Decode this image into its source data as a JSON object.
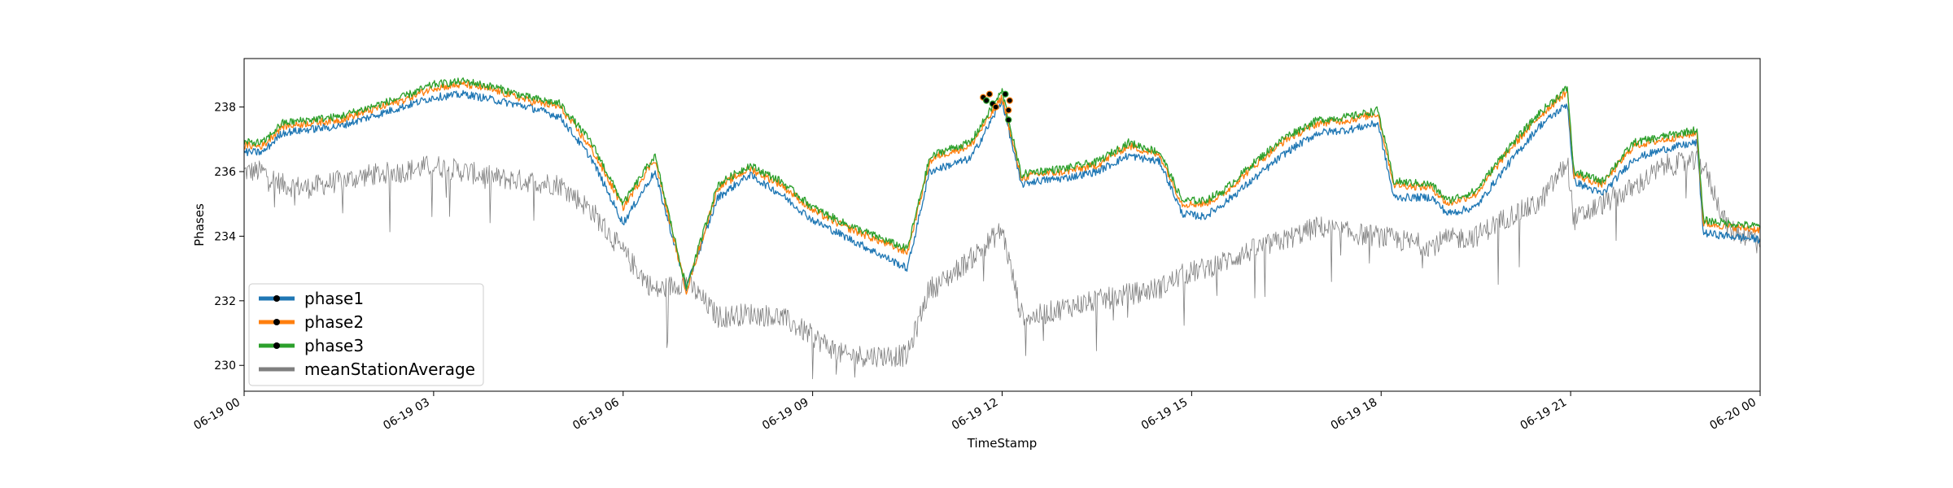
{
  "chart_data": {
    "type": "line",
    "title": "",
    "xlabel": "TimeStamp",
    "ylabel": "Phases",
    "xlim": [
      "06-19 00",
      "06-20 00"
    ],
    "ylim": [
      229.2,
      239.5
    ],
    "grid": false,
    "legend_position": "lower-left",
    "x_tick_labels": [
      "06-19 00",
      "06-19 03",
      "06-19 06",
      "06-19 09",
      "06-19 12",
      "06-19 15",
      "06-19 18",
      "06-19 21",
      "06-20 00"
    ],
    "y_ticks": [
      230,
      232,
      234,
      236,
      238
    ],
    "x_hours": [
      0,
      0.3,
      0.6,
      1,
      1.5,
      2,
      2.5,
      3,
      3.5,
      4,
      4.5,
      5,
      5.5,
      6,
      6.5,
      7,
      7.5,
      8,
      8.5,
      9,
      9.5,
      10,
      10.5,
      10.85,
      11,
      11.5,
      12,
      12.3,
      12.5,
      13,
      13.5,
      14,
      14.5,
      14.85,
      15.2,
      15.5,
      16,
      16.5,
      17,
      17.5,
      17.95,
      18.2,
      18.8,
      19.05,
      19.5,
      20,
      20.5,
      20.95,
      21.05,
      21.5,
      22,
      22.5,
      23,
      23.1,
      23.5,
      24
    ],
    "series": [
      {
        "name": "phase1",
        "color": "#1f77b4",
        "values": [
          236.6,
          236.6,
          237.2,
          237.3,
          237.4,
          237.7,
          238.0,
          238.3,
          238.4,
          238.2,
          238.0,
          237.7,
          236.4,
          234.4,
          236.0,
          232.4,
          235.2,
          235.9,
          235.3,
          234.5,
          234.0,
          233.5,
          233.0,
          236.0,
          236.1,
          236.4,
          238.2,
          235.6,
          235.7,
          235.8,
          236.0,
          236.5,
          236.3,
          234.7,
          234.6,
          235.0,
          235.8,
          236.6,
          237.2,
          237.3,
          237.5,
          235.2,
          235.2,
          234.7,
          234.9,
          236.2,
          237.4,
          238.1,
          235.7,
          235.3,
          236.4,
          236.7,
          236.9,
          234.1,
          234.0,
          233.9
        ]
      },
      {
        "name": "phase2",
        "color": "#ff7f0e",
        "values": [
          236.8,
          236.8,
          237.4,
          237.5,
          237.6,
          237.9,
          238.2,
          238.6,
          238.7,
          238.5,
          238.2,
          238.0,
          236.7,
          234.9,
          236.4,
          232.3,
          235.5,
          236.1,
          235.6,
          234.8,
          234.3,
          233.9,
          233.5,
          236.3,
          236.5,
          236.8,
          238.3,
          235.8,
          235.9,
          236.0,
          236.2,
          236.8,
          236.5,
          235.0,
          235.0,
          235.3,
          236.2,
          237.0,
          237.5,
          237.6,
          237.8,
          235.6,
          235.5,
          235.0,
          235.3,
          236.6,
          237.7,
          238.5,
          235.9,
          235.6,
          236.8,
          237.0,
          237.2,
          234.4,
          234.3,
          234.2
        ]
      },
      {
        "name": "phase3",
        "color": "#2ca02c",
        "values": [
          236.9,
          236.9,
          237.5,
          237.6,
          237.7,
          238.0,
          238.3,
          238.7,
          238.8,
          238.6,
          238.3,
          238.1,
          236.9,
          235.0,
          236.5,
          232.4,
          235.6,
          236.2,
          235.7,
          234.9,
          234.4,
          234.0,
          233.6,
          236.4,
          236.6,
          236.9,
          238.5,
          235.9,
          236.0,
          236.1,
          236.3,
          236.9,
          236.6,
          235.1,
          235.1,
          235.4,
          236.3,
          237.1,
          237.6,
          237.7,
          237.9,
          235.7,
          235.6,
          235.1,
          235.4,
          236.7,
          237.8,
          238.6,
          236.0,
          235.7,
          236.9,
          237.1,
          237.3,
          234.5,
          234.4,
          234.3
        ]
      },
      {
        "name": "meanStationAverage",
        "color": "#7f7f7f",
        "values": [
          236.0,
          236.0,
          235.6,
          235.5,
          235.7,
          235.9,
          236.0,
          236.2,
          236.0,
          235.8,
          235.7,
          235.6,
          234.8,
          233.5,
          232.3,
          232.6,
          231.5,
          231.6,
          231.5,
          230.9,
          230.3,
          230.3,
          230.3,
          232.4,
          232.5,
          233.3,
          234.2,
          231.6,
          231.5,
          231.8,
          232.0,
          232.2,
          232.4,
          232.8,
          233.0,
          233.2,
          233.6,
          233.9,
          234.3,
          234.1,
          234.0,
          233.9,
          233.7,
          233.9,
          234.0,
          234.6,
          235.0,
          236.3,
          234.5,
          235.0,
          235.5,
          236.2,
          236.3,
          236.2,
          234.2,
          233.9
        ]
      }
    ]
  }
}
